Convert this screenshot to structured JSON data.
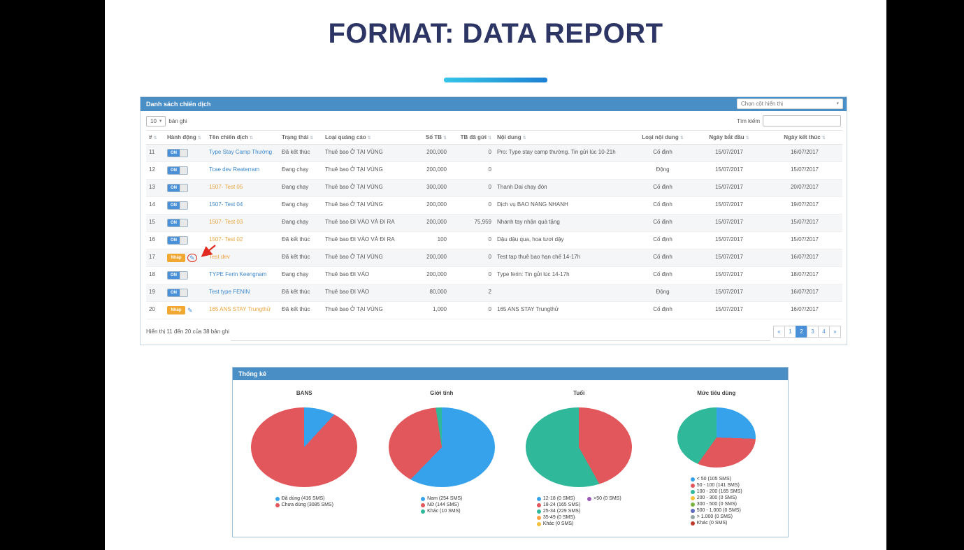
{
  "slide": {
    "title": "FORMAT: DATA REPORT"
  },
  "icons": {
    "caret": "▾",
    "sort": "⇅",
    "pencil": "✎"
  },
  "campaign_panel": {
    "header": "Danh sách chiến dịch",
    "column_selector": "Chọn cột hiển thị",
    "page_size": "10",
    "page_size_suffix": "bản ghi",
    "search_label": "Tìm kiếm",
    "search_value": "",
    "columns": [
      "#",
      "Hành động",
      "Tên chiến dịch",
      "Trạng thái",
      "Loại quảng cáo",
      "Số TB",
      "TB đã gửi",
      "Nội dung",
      "Loại nội dung",
      "Ngày bắt đầu",
      "Ngày kết thúc"
    ],
    "rows": [
      {
        "index": "11",
        "state": "on",
        "action_label": "ON",
        "annotated": false,
        "name": "Type Stay Camp Thường",
        "name_color": "blue",
        "status": "Đã kết thúc",
        "ad_type": "Thuê bao Ở TẠI VÙNG",
        "subs": "200,000",
        "sent": "0",
        "content": "Pro: Type stay camp thường. Tin gửi lúc 10-21h",
        "content_type": "Cố định",
        "start": "15/07/2017",
        "end": "16/07/2017"
      },
      {
        "index": "12",
        "state": "on",
        "action_label": "ON",
        "annotated": false,
        "name": "Tcae dev Reaterram",
        "name_color": "blue",
        "status": "Đang chạy",
        "ad_type": "Thuê bao Ở TẠI VÙNG",
        "subs": "200,000",
        "sent": "0",
        "content": "",
        "content_type": "Động",
        "start": "15/07/2017",
        "end": "15/07/2017"
      },
      {
        "index": "13",
        "state": "on",
        "action_label": "ON",
        "annotated": false,
        "name": "1507- Test 05",
        "name_color": "orange",
        "status": "Đang chạy",
        "ad_type": "Thuê bao Ở TẠI VÙNG",
        "subs": "300,000",
        "sent": "0",
        "content": "Thanh Dai chạy đón",
        "content_type": "Cố định",
        "start": "15/07/2017",
        "end": "20/07/2017"
      },
      {
        "index": "14",
        "state": "on",
        "action_label": "ON",
        "annotated": false,
        "name": "1507- Test 04",
        "name_color": "blue",
        "status": "Đang chạy",
        "ad_type": "Thuê bao Ở TẠI VÙNG",
        "subs": "200,000",
        "sent": "0",
        "content": "Dịch vụ BAO NANG NHANH",
        "content_type": "Cố định",
        "start": "15/07/2017",
        "end": "19/07/2017"
      },
      {
        "index": "15",
        "state": "on",
        "action_label": "ON",
        "annotated": false,
        "name": "1507- Test 03",
        "name_color": "orange",
        "status": "Đang chạy",
        "ad_type": "Thuê bao ĐI VÀO VÀ ĐI RA",
        "subs": "200,000",
        "sent": "75,959",
        "content": "Nhanh tay nhận quà tặng",
        "content_type": "Cố định",
        "start": "15/07/2017",
        "end": "15/07/2017"
      },
      {
        "index": "16",
        "state": "on",
        "action_label": "ON",
        "annotated": false,
        "name": "1507- Test 02",
        "name_color": "orange",
        "status": "Đã kết thúc",
        "ad_type": "Thuê bao ĐI VÀO VÀ ĐI RA",
        "subs": "100",
        "sent": "0",
        "content": "Dậu dậu qua, hoa tươi dậy",
        "content_type": "Cố định",
        "start": "15/07/2017",
        "end": "15/07/2017"
      },
      {
        "index": "17",
        "state": "pending",
        "action_label": "Nháp",
        "annotated": true,
        "name": "Test dev",
        "name_color": "orange",
        "status": "Đã kết thúc",
        "ad_type": "Thuê bao Ở TẠI VÙNG",
        "subs": "200,000",
        "sent": "0",
        "content": "Test tạp thuê bao hạn chế 14-17h",
        "content_type": "Cố định",
        "start": "15/07/2017",
        "end": "16/07/2017"
      },
      {
        "index": "18",
        "state": "on",
        "action_label": "ON",
        "annotated": false,
        "name": "TYPE Ferin Keengnam",
        "name_color": "blue",
        "status": "Đang chạy",
        "ad_type": "Thuê bao ĐI VÀO",
        "subs": "200,000",
        "sent": "0",
        "content": "Type ferin: Tin gửi lúc 14-17h",
        "content_type": "Cố định",
        "start": "15/07/2017",
        "end": "18/07/2017"
      },
      {
        "index": "19",
        "state": "on",
        "action_label": "ON",
        "annotated": false,
        "name": "Test type FENIN",
        "name_color": "blue",
        "status": "Đã kết thúc",
        "ad_type": "Thuê bao ĐI VÀO",
        "subs": "80,000",
        "sent": "2",
        "content": "",
        "content_type": "Động",
        "start": "15/07/2017",
        "end": "16/07/2017"
      },
      {
        "index": "20",
        "state": "pending",
        "action_label": "Nháp",
        "annotated": false,
        "name": "165 ANS STAY Trungthử",
        "name_color": "orange",
        "status": "Đã kết thúc",
        "ad_type": "Thuê bao Ở TẠI VÙNG",
        "subs": "1,000",
        "sent": "0",
        "content": "165 ANS STAY Trungthử",
        "content_type": "Cố định",
        "start": "15/07/2017",
        "end": "16/07/2017"
      }
    ],
    "footer": "Hiển thị 11 đến 20 của 38 bản ghi",
    "pagination": [
      "«",
      "1",
      "2",
      "3",
      "4",
      "»"
    ],
    "active_page": "2"
  },
  "stats_panel": {
    "header": "Thống kê"
  },
  "chart_data": [
    {
      "type": "pie",
      "title": "BANS",
      "unit": "SMS",
      "legend_position": "bottom",
      "items": [
        {
          "label": "Đã dùng",
          "value": 416,
          "color": "#36A2EB"
        },
        {
          "label": "Chưa dùng",
          "value": 3085,
          "color": "#E2575B"
        }
      ]
    },
    {
      "type": "pie",
      "title": "Giới tính",
      "unit": "SMS",
      "legend_position": "bottom",
      "items": [
        {
          "label": "Nam",
          "value": 254,
          "color": "#36A2EB"
        },
        {
          "label": "Nữ",
          "value": 144,
          "color": "#E2575B"
        },
        {
          "label": "Khác",
          "value": 10,
          "color": "#2FB89A"
        }
      ]
    },
    {
      "type": "pie",
      "title": "Tuổi",
      "unit": "SMS",
      "legend_position": "bottom",
      "items": [
        {
          "label": "12-18",
          "value": 0,
          "color": "#36A2EB"
        },
        {
          "label": "18-24",
          "value": 165,
          "color": "#E2575B"
        },
        {
          "label": "25-34",
          "value": 229,
          "color": "#2FB89A"
        },
        {
          "label": "35-49",
          "value": 0,
          "color": "#FF9F40"
        },
        {
          "label": "Khác",
          "value": 0,
          "color": "#F3C13A"
        },
        {
          "label": ">50",
          "value": 0,
          "color": "#9B59B6"
        }
      ]
    },
    {
      "type": "pie",
      "title": "Mức tiêu dùng",
      "unit": "SMS",
      "legend_position": "bottom",
      "items": [
        {
          "label": "< 50",
          "value": 105,
          "color": "#36A2EB"
        },
        {
          "label": "50 - 100",
          "value": 141,
          "color": "#E2575B"
        },
        {
          "label": "100 - 200",
          "value": 165,
          "color": "#2FB89A"
        },
        {
          "label": "200 - 300",
          "value": 0,
          "color": "#F3C13A"
        },
        {
          "label": "300 - 500",
          "value": 0,
          "color": "#7CB342"
        },
        {
          "label": "500 - 1.000",
          "value": 0,
          "color": "#5C6BC0"
        },
        {
          "label": "> 1.000",
          "value": 0,
          "color": "#95A5A6"
        },
        {
          "label": "Khác",
          "value": 0,
          "color": "#C0392B"
        }
      ]
    }
  ]
}
